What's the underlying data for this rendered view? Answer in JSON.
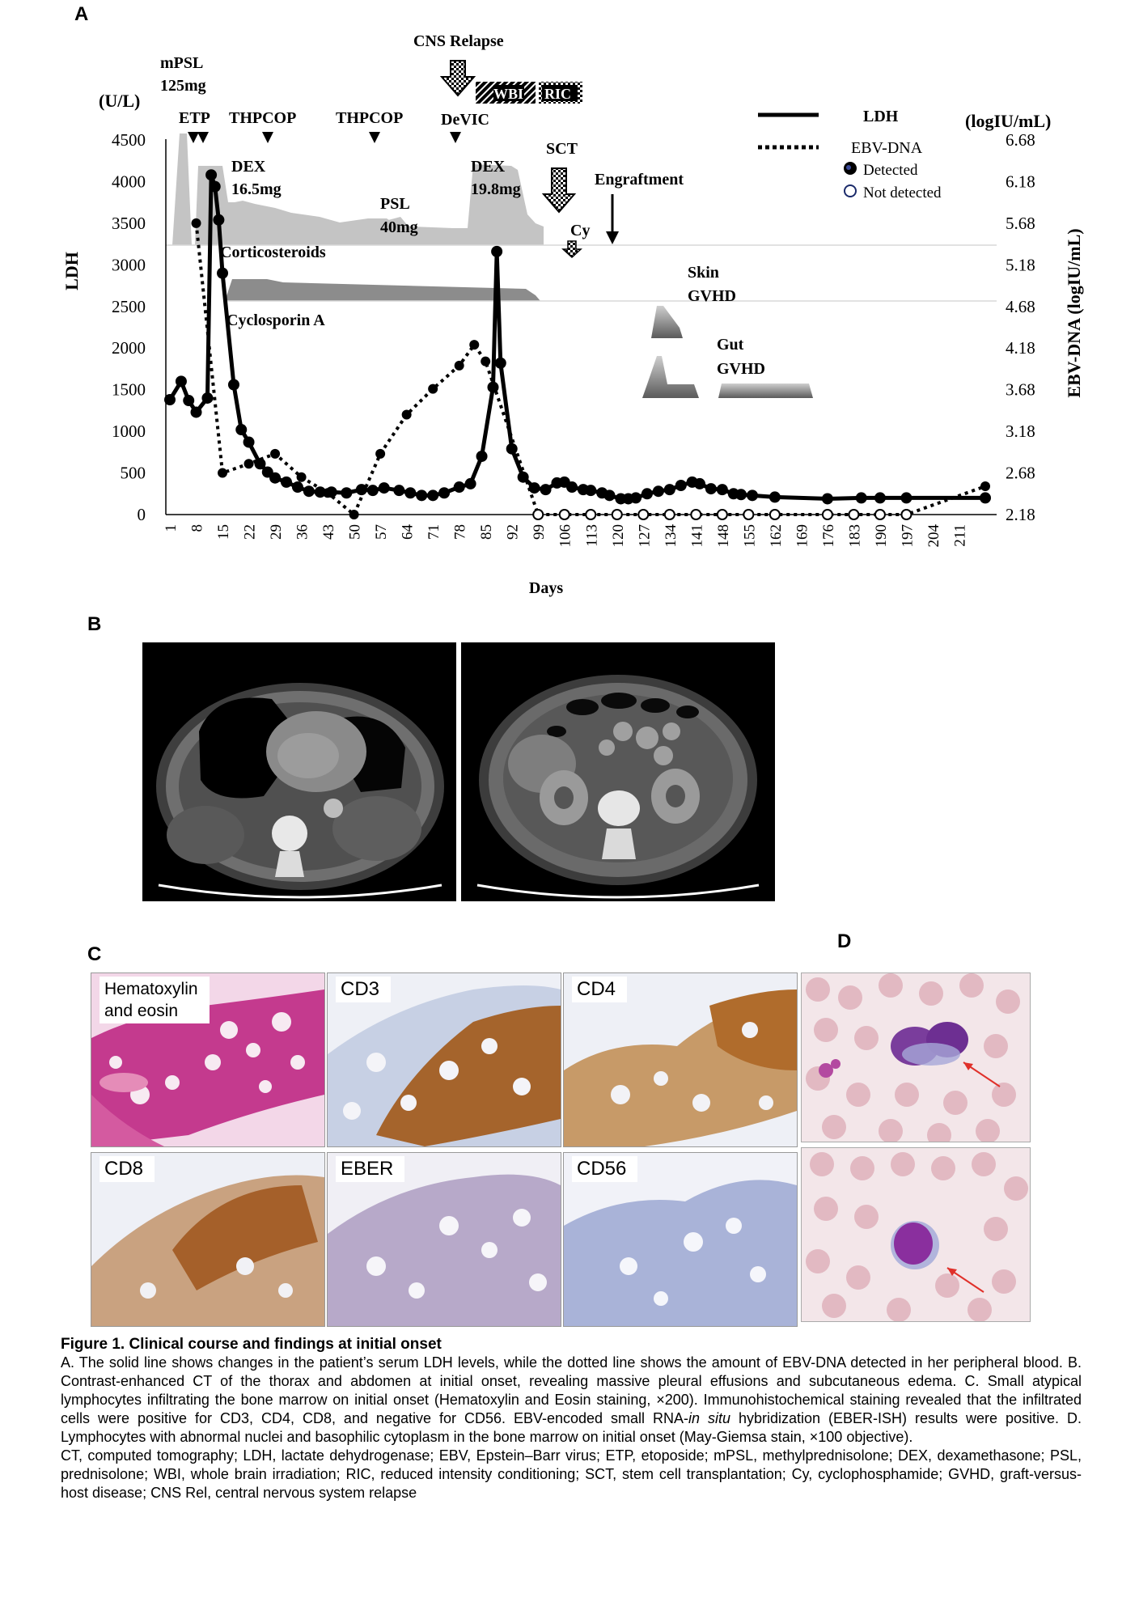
{
  "panels": {
    "a": "A",
    "b": "B",
    "c": "C",
    "d": "D"
  },
  "chart_data": {
    "type": "line",
    "left_axis_unit": "(U/L)",
    "right_axis_unit": "(logIU/mL)",
    "ylabel": "LDH",
    "y2label": "EBV-DNA (logIU/mL)",
    "xlabel": "Days",
    "ylim": [
      0,
      4500
    ],
    "y2lim": [
      2.18,
      6.68
    ],
    "yticks": [
      "0",
      "500",
      "1000",
      "1500",
      "2000",
      "2500",
      "3000",
      "3500",
      "4000",
      "4500"
    ],
    "y2ticks": [
      "2.18",
      "2.68",
      "3.18",
      "3.68",
      "4.18",
      "4.68",
      "5.18",
      "5.68",
      "6.18",
      "6.68"
    ],
    "xticks": [
      "1",
      "8",
      "15",
      "22",
      "29",
      "36",
      "43",
      "50",
      "57",
      "64",
      "71",
      "78",
      "85",
      "92",
      "99",
      "106",
      "113",
      "120",
      "127",
      "134",
      "141",
      "148",
      "155",
      "162",
      "169",
      "176",
      "183",
      "190",
      "197",
      "204",
      "211"
    ],
    "legend": {
      "ldh": "LDH",
      "ebv": "EBV-DNA",
      "detected": "Detected",
      "not_detected": "Not detected"
    },
    "series": [
      {
        "name": "LDH",
        "style": "solid",
        "points": [
          [
            1,
            1380
          ],
          [
            4,
            1600
          ],
          [
            6,
            1370
          ],
          [
            8,
            1230
          ],
          [
            11,
            1400
          ],
          [
            12,
            4080
          ],
          [
            13,
            3940
          ],
          [
            14,
            3540
          ],
          [
            15,
            2900
          ],
          [
            18,
            1560
          ],
          [
            20,
            1020
          ],
          [
            22,
            870
          ],
          [
            25,
            610
          ],
          [
            27,
            510
          ],
          [
            29,
            440
          ],
          [
            32,
            390
          ],
          [
            35,
            330
          ],
          [
            38,
            280
          ],
          [
            41,
            270
          ],
          [
            44,
            270
          ],
          [
            48,
            260
          ],
          [
            52,
            300
          ],
          [
            55,
            290
          ],
          [
            58,
            320
          ],
          [
            62,
            290
          ],
          [
            65,
            260
          ],
          [
            68,
            230
          ],
          [
            71,
            230
          ],
          [
            74,
            260
          ],
          [
            78,
            330
          ],
          [
            81,
            370
          ],
          [
            84,
            700
          ],
          [
            87,
            1530
          ],
          [
            88,
            3160
          ],
          [
            89,
            1820
          ],
          [
            92,
            790
          ],
          [
            95,
            450
          ],
          [
            98,
            320
          ],
          [
            101,
            300
          ],
          [
            104,
            380
          ],
          [
            106,
            390
          ],
          [
            108,
            330
          ],
          [
            111,
            300
          ],
          [
            113,
            290
          ],
          [
            116,
            260
          ],
          [
            118,
            230
          ],
          [
            121,
            190
          ],
          [
            123,
            190
          ],
          [
            125,
            200
          ],
          [
            128,
            250
          ],
          [
            131,
            280
          ],
          [
            134,
            300
          ],
          [
            137,
            350
          ],
          [
            140,
            390
          ],
          [
            142,
            370
          ],
          [
            145,
            310
          ],
          [
            148,
            300
          ],
          [
            151,
            250
          ],
          [
            153,
            240
          ],
          [
            156,
            230
          ],
          [
            162,
            210
          ],
          [
            176,
            190
          ],
          [
            185,
            200
          ],
          [
            190,
            200
          ],
          [
            197,
            200
          ],
          [
            218,
            200
          ]
        ]
      },
      {
        "name": "EBV-DNA",
        "style": "dotted",
        "points": [
          [
            8,
            5.68,
            "detected"
          ],
          [
            15,
            2.68,
            "detected"
          ],
          [
            22,
            2.79,
            "detected"
          ],
          [
            29,
            2.91,
            "detected"
          ],
          [
            36,
            2.63,
            "detected"
          ],
          [
            43,
            2.44,
            "detected"
          ],
          [
            50,
            2.18,
            "detected"
          ],
          [
            57,
            2.91,
            "detected"
          ],
          [
            64,
            3.38,
            "detected"
          ],
          [
            71,
            3.69,
            "detected"
          ],
          [
            78,
            3.97,
            "detected"
          ],
          [
            82,
            4.22,
            "detected"
          ],
          [
            85,
            4.02,
            "detected"
          ],
          [
            99,
            2.18,
            "not"
          ],
          [
            106,
            2.18,
            "not"
          ],
          [
            113,
            2.18,
            "not"
          ],
          [
            120,
            2.18,
            "not"
          ],
          [
            127,
            2.18,
            "not"
          ],
          [
            134,
            2.18,
            "not"
          ],
          [
            141,
            2.18,
            "not"
          ],
          [
            148,
            2.18,
            "not"
          ],
          [
            155,
            2.18,
            "not"
          ],
          [
            162,
            2.18,
            "not"
          ],
          [
            176,
            2.18,
            "not"
          ],
          [
            183,
            2.18,
            "not"
          ],
          [
            190,
            2.18,
            "not"
          ],
          [
            197,
            2.18,
            "not"
          ],
          [
            218,
            2.52,
            "detected"
          ]
        ]
      }
    ],
    "annotations": [
      {
        "text": "mPSL"
      },
      {
        "text": "125mg"
      },
      {
        "text": "ETP"
      },
      {
        "text": "THPCOP"
      },
      {
        "text": "THPCOP"
      },
      {
        "text": "CNS Relapse"
      },
      {
        "text": "DeVIC"
      },
      {
        "text": "WBI"
      },
      {
        "text": "RIC"
      },
      {
        "text": "DEX"
      },
      {
        "text": "16.5mg"
      },
      {
        "text": "PSL"
      },
      {
        "text": "40mg"
      },
      {
        "text": "DEX"
      },
      {
        "text": "19.8mg"
      },
      {
        "text": "SCT"
      },
      {
        "text": "Cy"
      },
      {
        "text": "Engraftment"
      },
      {
        "text": "Corticosteroids"
      },
      {
        "text": "Cyclosporin A"
      },
      {
        "text": "Skin"
      },
      {
        "text": "GVHD"
      },
      {
        "text": "Gut"
      },
      {
        "text": "GVHD"
      }
    ]
  },
  "histology": [
    {
      "label": "Hematoxylin\nand eosin",
      "stain": "he"
    },
    {
      "label": "CD3",
      "stain": "brown"
    },
    {
      "label": "CD4",
      "stain": "brown"
    },
    {
      "label": "CD8",
      "stain": "brown"
    },
    {
      "label": "EBER",
      "stain": "ebv"
    },
    {
      "label": "CD56",
      "stain": "blue"
    }
  ],
  "caption": {
    "title": "Figure 1.   Clinical course and findings at initial onset",
    "p1_a": "A. The solid line shows changes in the patient’s serum LDH levels, while the dotted line shows the amount of EBV-DNA detected in her peripheral blood. B. Contrast-enhanced CT of the thorax and abdomen at initial onset, revealing massive pleural effusions and subcutaneous edema. C. Small atypical lymphocytes infiltrating the bone marrow on initial onset (Hematoxylin and Eosin staining, ×200). Immunohistochemical staining revealed that the infiltrated cells were positive for CD3, CD4, CD8, and negative for CD56. EBV-encoded small RNA-",
    "p1_italic": "in situ",
    "p1_b": " hybridization (EBER-ISH) results were positive. D. Lymphocytes with abnormal nuclei and basophilic cytoplasm in the bone marrow on initial onset (May-Giemsa stain, ×100 objective).",
    "p2": "CT, computed tomography; LDH, lactate dehydrogenase; EBV, Epstein–Barr virus; ETP, etoposide; mPSL, methylprednisolone; DEX, dexamethasone; PSL, prednisolone; WBI, whole brain irradiation; RIC, reduced intensity conditioning; SCT, stem cell transplantation; Cy, cyclophosphamide; GVHD, graft-versus-host disease; CNS Rel, central nervous system relapse"
  }
}
